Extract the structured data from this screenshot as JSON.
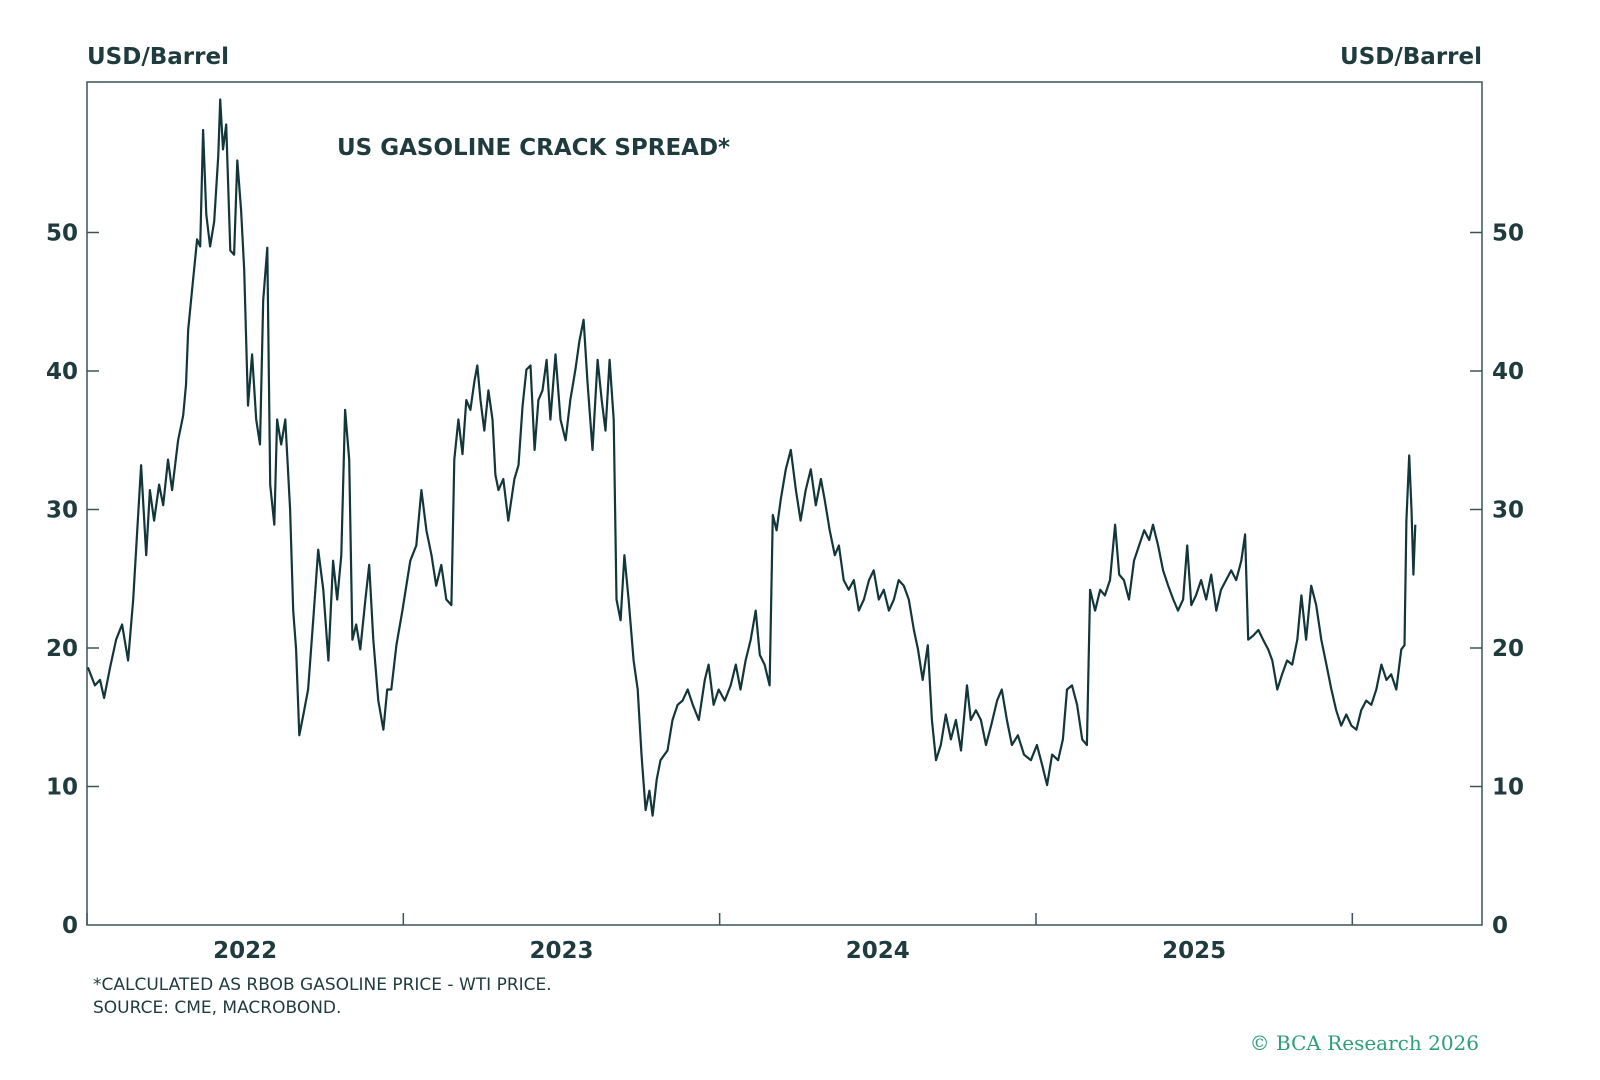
{
  "chart_data": {
    "type": "line",
    "title": "US GASOLINE CRACK SPREAD*",
    "ylabel_left": "USD/Barrel",
    "ylabel_right": "USD/Barrel",
    "ylim": [
      0,
      61
    ],
    "xlim": [
      2022.0,
      2026.41
    ],
    "yticks": [
      0,
      10,
      20,
      30,
      40,
      50
    ],
    "xtick_years": [
      2022,
      2023,
      2024,
      2025,
      2026
    ],
    "xtick_labels": [
      "2022",
      "2023",
      "2024",
      "2025"
    ],
    "grid": false,
    "line_color": "#12363a",
    "series": [
      {
        "x": [
          2022.003,
          2022.025,
          2022.041,
          2022.054,
          2022.073,
          2022.092,
          2022.111,
          2022.13,
          2022.146,
          2022.158,
          2022.171,
          2022.187,
          2022.199,
          2022.212,
          2022.228,
          2022.241,
          2022.256,
          2022.269,
          2022.288,
          2022.304,
          2022.313,
          2022.32,
          2022.332,
          2022.348,
          2022.358,
          2022.367,
          2022.377,
          2022.389,
          2022.402,
          2022.415,
          2022.421,
          2022.43,
          2022.44,
          2022.453,
          2022.465,
          2022.475,
          2022.487,
          2022.497,
          2022.509,
          2022.522,
          2022.535,
          2022.547,
          2022.557,
          2022.57,
          2022.579,
          2022.592,
          2022.601,
          2022.614,
          2022.627,
          2022.642,
          2022.652,
          2022.661,
          2022.671,
          2022.684,
          2022.699,
          2022.715,
          2022.731,
          2022.747,
          2022.763,
          2022.778,
          2022.791,
          2022.804,
          2022.816,
          2022.829,
          2022.839,
          2022.851,
          2022.864,
          2022.88,
          2022.892,
          2022.905,
          2022.921,
          2022.937,
          2022.949,
          2022.962,
          2022.978,
          2022.997,
          2023.022,
          2023.041,
          2023.057,
          2023.073,
          2023.089,
          2023.104,
          2023.12,
          2023.136,
          2023.152,
          2023.161,
          2023.174,
          2023.187,
          2023.199,
          2023.212,
          2023.225,
          2023.234,
          2023.244,
          2023.256,
          2023.269,
          2023.282,
          2023.291,
          2023.301,
          2023.316,
          2023.332,
          2023.351,
          2023.364,
          2023.377,
          2023.389,
          2023.402,
          2023.415,
          2023.427,
          2023.44,
          2023.453,
          2023.465,
          2023.481,
          2023.497,
          2023.513,
          2023.528,
          2023.544,
          2023.557,
          2023.57,
          2023.582,
          2023.598,
          2023.614,
          2023.627,
          2023.639,
          2023.652,
          2023.665,
          2023.674,
          2023.687,
          2023.699,
          2023.712,
          2023.728,
          2023.741,
          2023.753,
          2023.766,
          2023.778,
          2023.788,
          2023.801,
          2023.813,
          2023.835,
          2023.851,
          2023.867,
          2023.883,
          2023.899,
          2023.915,
          2023.934,
          2023.953,
          2023.965,
          2023.981,
          2023.997,
          2024.016,
          2024.035,
          2024.051,
          2024.066,
          2024.082,
          2024.098,
          2024.114,
          2024.127,
          2024.142,
          2024.158,
          2024.168,
          2024.18,
          2024.193,
          2024.209,
          2024.225,
          2024.241,
          2024.256,
          2024.272,
          2024.288,
          2024.304,
          2024.32,
          2024.332,
          2024.348,
          2024.364,
          2024.377,
          2024.392,
          2024.408,
          2024.424,
          2024.44,
          2024.456,
          2024.472,
          2024.487,
          2024.503,
          2024.519,
          2024.535,
          2024.551,
          2024.566,
          2024.582,
          2024.598,
          2024.614,
          2024.627,
          2024.642,
          2024.658,
          2024.671,
          2024.684,
          2024.699,
          2024.715,
          2024.731,
          2024.747,
          2024.763,
          2024.782,
          2024.794,
          2024.81,
          2024.826,
          2024.842,
          2024.858,
          2024.877,
          2024.892,
          2024.908,
          2024.924,
          2024.943,
          2024.962,
          2024.984,
          2025.003,
          2025.019,
          2025.035,
          2025.051,
          2025.07,
          2025.085,
          2025.098,
          2025.114,
          2025.13,
          2025.146,
          2025.161,
          2025.171,
          2025.187,
          2025.203,
          2025.218,
          2025.234,
          2025.25,
          2025.263,
          2025.278,
          2025.294,
          2025.31,
          2025.326,
          2025.342,
          2025.358,
          2025.37,
          2025.386,
          2025.402,
          2025.418,
          2025.434,
          2025.449,
          2025.465,
          2025.478,
          2025.491,
          2025.506,
          2025.522,
          2025.538,
          2025.554,
          2025.57,
          2025.585,
          2025.601,
          2025.617,
          2025.633,
          2025.649,
          2025.661,
          2025.671,
          2025.687,
          2025.703,
          2025.718,
          2025.734,
          2025.747,
          2025.763,
          2025.778,
          2025.794,
          2025.81,
          2025.826,
          2025.839,
          2025.854,
          2025.87,
          2025.886,
          2025.902,
          2025.918,
          2025.934,
          2025.949,
          2025.965,
          2025.981,
          2025.997,
          2026.013,
          2026.028,
          2026.044,
          2026.06,
          2026.076,
          2026.092,
          2026.108,
          2026.123,
          2026.139,
          2026.155,
          2026.165,
          2026.171,
          2026.18,
          2026.187,
          2026.193,
          2026.199
        ],
        "y": [
          18.6,
          17.3,
          17.7,
          16.4,
          18.6,
          20.6,
          21.7,
          19.1,
          23.5,
          28.2,
          33.2,
          26.7,
          31.4,
          29.2,
          31.8,
          30.3,
          33.6,
          31.4,
          35.0,
          36.8,
          39.0,
          43.0,
          45.8,
          49.5,
          49.0,
          57.4,
          51.3,
          49.0,
          50.8,
          55.6,
          59.6,
          56.0,
          57.8,
          48.7,
          48.4,
          55.2,
          51.6,
          47.3,
          37.5,
          41.2,
          36.5,
          34.7,
          45.1,
          48.9,
          31.8,
          28.9,
          36.5,
          34.7,
          36.5,
          30.0,
          22.7,
          19.9,
          13.7,
          15.2,
          17.0,
          22.0,
          27.1,
          24.2,
          19.1,
          26.3,
          23.5,
          26.7,
          37.2,
          33.6,
          20.6,
          21.7,
          19.9,
          23.5,
          26.0,
          20.6,
          16.2,
          14.1,
          17.0,
          17.0,
          20.2,
          22.7,
          26.3,
          27.4,
          31.4,
          28.5,
          26.7,
          24.5,
          26.0,
          23.5,
          23.1,
          33.6,
          36.5,
          34.0,
          37.9,
          37.2,
          39.3,
          40.4,
          37.9,
          35.7,
          38.6,
          36.5,
          32.5,
          31.4,
          32.2,
          29.2,
          32.2,
          33.2,
          37.5,
          40.1,
          40.4,
          34.3,
          37.9,
          38.6,
          40.8,
          36.5,
          41.2,
          36.5,
          35.0,
          37.9,
          40.1,
          42.2,
          43.7,
          39.3,
          34.3,
          40.8,
          37.9,
          35.7,
          40.8,
          36.5,
          23.5,
          22.0,
          26.7,
          23.5,
          19.1,
          17.0,
          12.3,
          8.3,
          9.7,
          7.9,
          10.5,
          11.9,
          12.6,
          14.8,
          15.9,
          16.2,
          17.0,
          15.9,
          14.8,
          17.7,
          18.8,
          15.9,
          17.0,
          16.2,
          17.3,
          18.8,
          17.0,
          19.1,
          20.6,
          22.7,
          19.5,
          18.8,
          17.3,
          29.6,
          28.5,
          30.7,
          32.9,
          34.3,
          31.4,
          29.2,
          31.4,
          32.9,
          30.3,
          32.2,
          30.7,
          28.5,
          26.7,
          27.4,
          24.9,
          24.2,
          24.9,
          22.7,
          23.5,
          24.9,
          25.6,
          23.5,
          24.2,
          22.7,
          23.5,
          24.9,
          24.5,
          23.5,
          21.3,
          19.9,
          17.7,
          20.2,
          14.8,
          11.9,
          13.0,
          15.2,
          13.4,
          14.8,
          12.6,
          17.3,
          14.8,
          15.5,
          14.8,
          13.0,
          14.4,
          16.2,
          17.0,
          14.8,
          13.0,
          13.7,
          12.3,
          11.9,
          13.0,
          11.6,
          10.1,
          12.3,
          11.9,
          13.4,
          17.0,
          17.3,
          15.9,
          13.4,
          13.0,
          24.2,
          22.7,
          24.2,
          23.8,
          24.9,
          28.9,
          25.3,
          24.9,
          23.5,
          26.3,
          27.4,
          28.5,
          27.8,
          28.9,
          27.4,
          25.6,
          24.5,
          23.5,
          22.7,
          23.5,
          27.4,
          23.1,
          23.8,
          24.9,
          23.5,
          25.3,
          22.7,
          24.2,
          24.9,
          25.6,
          24.9,
          26.3,
          28.2,
          20.6,
          20.9,
          21.3,
          20.6,
          19.9,
          19.1,
          17.0,
          18.1,
          19.1,
          18.8,
          20.6,
          23.8,
          20.6,
          24.5,
          23.1,
          20.6,
          18.8,
          17.0,
          15.5,
          14.4,
          15.2,
          14.4,
          14.1,
          15.5,
          16.2,
          15.9,
          17.0,
          18.8,
          17.7,
          18.1,
          17.0,
          19.9,
          20.2,
          29.2,
          33.9,
          30.0,
          25.3,
          28.9
        ]
      }
    ],
    "footnote": "*CALCULATED AS RBOB GASOLINE PRICE - WTI PRICE.",
    "source": "SOURCE: CME, MACROBOND.",
    "copyright": "© BCA Research 2026",
    "brand_color": "#2e9e78"
  }
}
